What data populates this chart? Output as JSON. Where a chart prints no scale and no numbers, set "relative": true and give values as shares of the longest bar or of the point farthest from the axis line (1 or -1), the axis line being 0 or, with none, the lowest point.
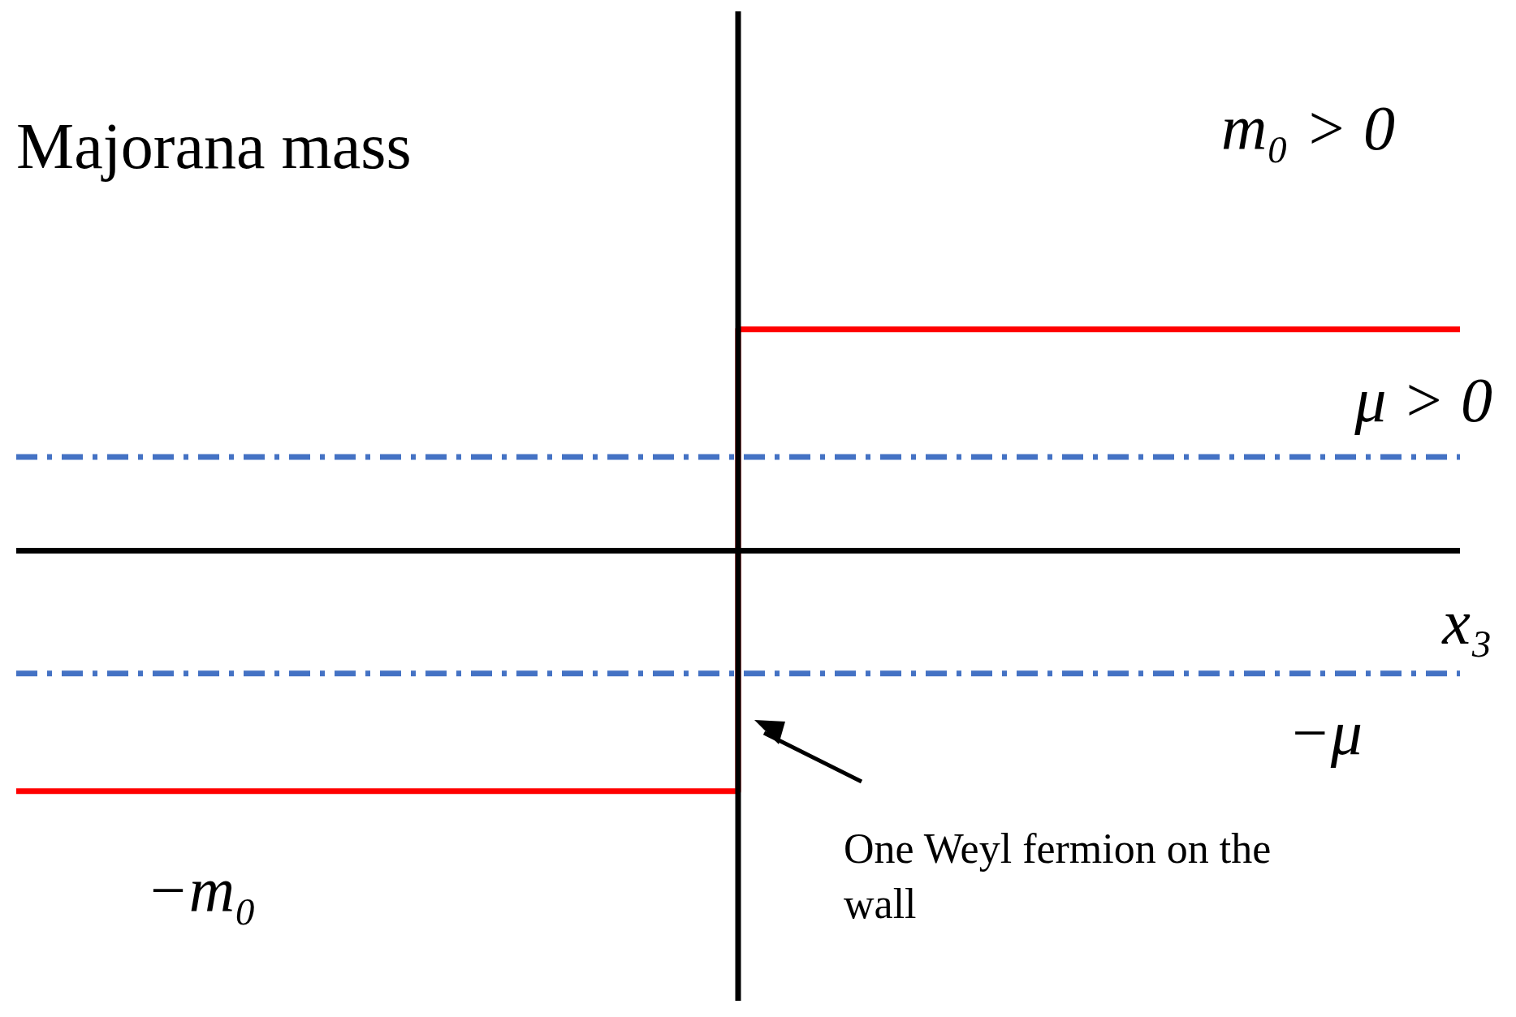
{
  "chart_data": {
    "type": "line",
    "title": "Majorana mass",
    "xlabel": "x₃",
    "relative": true,
    "categories": [
      null,
      null,
      null
    ],
    "line_style": "solid",
    "marker": "none",
    "legend": false,
    "series": [
      {
        "type": "step",
        "color": "#ff0000",
        "values": [
          -1,
          0.92,
          0.92
        ]
      },
      {
        "name": "μ > 0",
        "color": "#4472c4",
        "values": [
          0.39,
          0.39,
          0.39
        ],
        "line_style": "dashed"
      },
      {
        "name": "−μ",
        "color": "#4472c4",
        "values": [
          -0.51,
          -0.51,
          -0.51
        ],
        "line_style": "dashed"
      }
    ],
    "annotations": [
      "m₀ > 0",
      "−m₀",
      "One Weyl fermion on the wall"
    ]
  }
}
